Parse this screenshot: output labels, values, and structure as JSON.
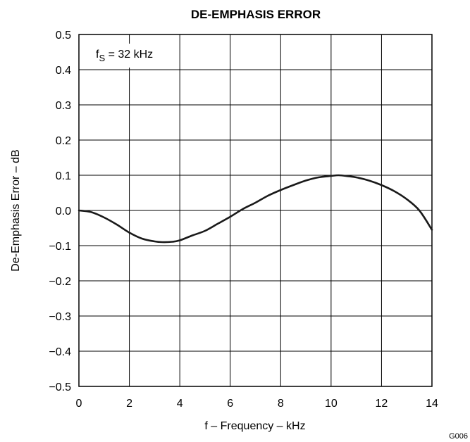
{
  "chart_data": {
    "type": "line",
    "title": "DE-EMPHASIS ERROR",
    "xlabel": "f – Frequency – kHz",
    "ylabel": "De-Emphasis Error – dB",
    "xlim": [
      0,
      14
    ],
    "ylim": [
      -0.5,
      0.5
    ],
    "grid": true,
    "x_ticks": [
      "0",
      "2",
      "4",
      "6",
      "8",
      "10",
      "12",
      "14"
    ],
    "y_ticks": [
      "0.5",
      "0.4",
      "0.3",
      "0.2",
      "0.1",
      "0.0",
      "−0.1",
      "−0.2",
      "−0.3",
      "−0.4",
      "−0.5"
    ],
    "annotation": {
      "prefix": "f",
      "subscript": "S",
      "suffix": " = 32 kHz"
    },
    "figure_code": "G006",
    "series": [
      {
        "x": [
          0,
          0.5,
          1,
          1.5,
          2,
          2.5,
          3,
          3.3,
          3.7,
          4,
          4.5,
          5,
          5.5,
          6,
          6.5,
          7,
          7.5,
          8,
          8.5,
          9,
          9.5,
          10,
          10.3,
          10.7,
          11,
          11.5,
          12,
          12.5,
          13,
          13.5,
          14
        ],
        "y": [
          0.0,
          -0.005,
          -0.02,
          -0.04,
          -0.063,
          -0.08,
          -0.088,
          -0.09,
          -0.089,
          -0.085,
          -0.071,
          -0.058,
          -0.038,
          -0.018,
          0.004,
          0.022,
          0.042,
          0.058,
          0.072,
          0.085,
          0.094,
          0.098,
          0.1,
          0.097,
          0.094,
          0.085,
          0.072,
          0.055,
          0.032,
          0.0,
          -0.055
        ]
      }
    ]
  }
}
